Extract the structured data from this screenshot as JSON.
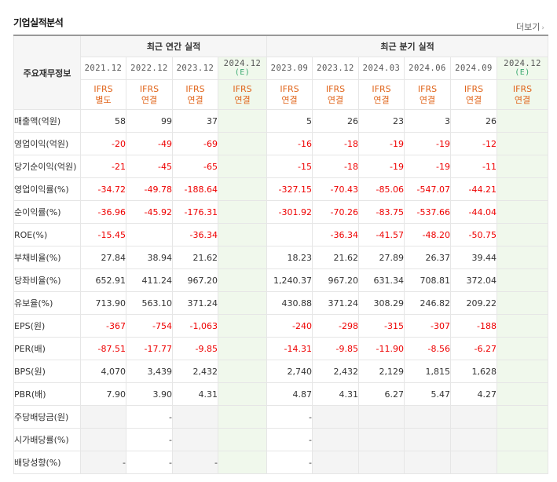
{
  "section": {
    "title": "기업실적분석",
    "more_label": "더보기"
  },
  "table": {
    "row_header": "주요재무정보",
    "annual_group": "최근 연간 실적",
    "quarter_group": "최근 분기 실적",
    "columns": [
      {
        "date": "2021.12",
        "est": "",
        "ifrs": "IFRS",
        "basis": "별도"
      },
      {
        "date": "2022.12",
        "est": "",
        "ifrs": "IFRS",
        "basis": "연결"
      },
      {
        "date": "2023.12",
        "est": "",
        "ifrs": "IFRS",
        "basis": "연결"
      },
      {
        "date": "2024.12",
        "est": "(E)",
        "ifrs": "IFRS",
        "basis": "연결"
      },
      {
        "date": "2023.09",
        "est": "",
        "ifrs": "IFRS",
        "basis": "연결"
      },
      {
        "date": "2023.12",
        "est": "",
        "ifrs": "IFRS",
        "basis": "연결"
      },
      {
        "date": "2024.03",
        "est": "",
        "ifrs": "IFRS",
        "basis": "연결"
      },
      {
        "date": "2024.06",
        "est": "",
        "ifrs": "IFRS",
        "basis": "연결"
      },
      {
        "date": "2024.09",
        "est": "",
        "ifrs": "IFRS",
        "basis": "연결"
      },
      {
        "date": "2024.12",
        "est": "(E)",
        "ifrs": "IFRS",
        "basis": "연결"
      }
    ],
    "rows": [
      {
        "label": "매출액(억원)",
        "values": [
          "58",
          "99",
          "37",
          "",
          "5",
          "26",
          "23",
          "3",
          "26",
          ""
        ]
      },
      {
        "label": "영업이익(억원)",
        "values": [
          "-20",
          "-49",
          "-69",
          "",
          "-16",
          "-18",
          "-19",
          "-19",
          "-12",
          ""
        ]
      },
      {
        "label": "당기순이익(억원)",
        "values": [
          "-21",
          "-45",
          "-65",
          "",
          "-15",
          "-18",
          "-19",
          "-19",
          "-11",
          ""
        ]
      },
      {
        "label": "영업이익률(%)",
        "values": [
          "-34.72",
          "-49.78",
          "-188.64",
          "",
          "-327.15",
          "-70.43",
          "-85.06",
          "-547.07",
          "-44.21",
          ""
        ]
      },
      {
        "label": "순이익률(%)",
        "values": [
          "-36.96",
          "-45.92",
          "-176.31",
          "",
          "-301.92",
          "-70.26",
          "-83.75",
          "-537.66",
          "-44.04",
          ""
        ]
      },
      {
        "label": "ROE(%)",
        "values": [
          "-15.45",
          "",
          "-36.34",
          "",
          "",
          "-36.34",
          "-41.57",
          "-48.20",
          "-50.75",
          ""
        ]
      },
      {
        "label": "부채비율(%)",
        "values": [
          "27.84",
          "38.94",
          "21.62",
          "",
          "18.23",
          "21.62",
          "27.89",
          "26.37",
          "39.44",
          ""
        ]
      },
      {
        "label": "당좌비율(%)",
        "values": [
          "652.91",
          "411.24",
          "967.20",
          "",
          "1,240.37",
          "967.20",
          "631.34",
          "708.81",
          "372.04",
          ""
        ]
      },
      {
        "label": "유보율(%)",
        "values": [
          "713.90",
          "563.10",
          "371.24",
          "",
          "430.88",
          "371.24",
          "308.29",
          "246.82",
          "209.22",
          ""
        ]
      },
      {
        "label": "EPS(원)",
        "values": [
          "-367",
          "-754",
          "-1,063",
          "",
          "-240",
          "-298",
          "-315",
          "-307",
          "-188",
          ""
        ]
      },
      {
        "label": "PER(배)",
        "values": [
          "-87.51",
          "-17.77",
          "-9.85",
          "",
          "-14.31",
          "-9.85",
          "-11.90",
          "-8.56",
          "-6.27",
          ""
        ]
      },
      {
        "label": "BPS(원)",
        "values": [
          "4,070",
          "3,439",
          "2,432",
          "",
          "2,740",
          "2,432",
          "2,129",
          "1,815",
          "1,628",
          ""
        ]
      },
      {
        "label": "PBR(배)",
        "values": [
          "7.90",
          "3.90",
          "4.31",
          "",
          "4.87",
          "4.31",
          "6.27",
          "5.47",
          "4.27",
          ""
        ]
      },
      {
        "label": "주당배당금(원)",
        "values": [
          "",
          "-",
          "",
          "",
          "-",
          "",
          "",
          "",
          "",
          ""
        ]
      },
      {
        "label": "시가배당률(%)",
        "values": [
          "",
          "-",
          "",
          "",
          "-",
          "",
          "",
          "",
          "",
          ""
        ]
      },
      {
        "label": "배당성향(%)",
        "values": [
          "-",
          "-",
          "-",
          "",
          "-",
          "",
          "",
          "",
          "",
          ""
        ]
      }
    ]
  }
}
